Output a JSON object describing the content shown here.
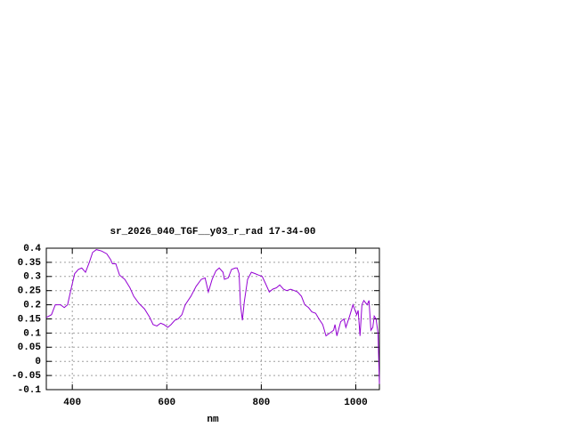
{
  "chart_data": {
    "type": "line",
    "title": "sr_2026_040_TGF__y03_r_rad 17-34-00",
    "x_label": "nm",
    "xlim": [
      345,
      1050
    ],
    "xticks": [
      400,
      600,
      800,
      1000
    ],
    "ylim": [
      -0.1,
      0.4
    ],
    "yticks": [
      -0.1,
      -0.05,
      0,
      0.05,
      0.1,
      0.15,
      0.2,
      0.25,
      0.3,
      0.35,
      0.4
    ],
    "grid": true,
    "x": [
      345,
      356,
      364,
      375,
      383,
      390,
      398,
      405,
      413,
      420,
      428,
      436,
      443,
      451,
      462,
      473,
      481,
      485,
      492,
      500,
      511,
      522,
      530,
      541,
      553,
      564,
      571,
      579,
      587,
      594,
      602,
      609,
      617,
      624,
      632,
      639,
      651,
      662,
      673,
      681,
      688,
      696,
      704,
      711,
      719,
      722,
      730,
      737,
      745,
      749,
      753,
      756,
      760,
      764,
      771,
      779,
      787,
      794,
      802,
      809,
      817,
      824,
      832,
      839,
      847,
      854,
      862,
      870,
      877,
      885,
      892,
      900,
      907,
      915,
      922,
      930,
      937,
      945,
      953,
      956,
      960,
      968,
      975,
      979,
      987,
      994,
      1002,
      1005,
      1009,
      1013,
      1017,
      1024,
      1028,
      1032,
      1036,
      1039,
      1043,
      1047,
      1050
    ],
    "series": [
      {
        "color": "#9400d3",
        "values": [
          0.155,
          0.165,
          0.2,
          0.2,
          0.19,
          0.2,
          0.26,
          0.31,
          0.325,
          0.33,
          0.315,
          0.35,
          0.385,
          0.395,
          0.39,
          0.38,
          0.36,
          0.345,
          0.345,
          0.305,
          0.29,
          0.26,
          0.23,
          0.205,
          0.185,
          0.155,
          0.13,
          0.125,
          0.135,
          0.13,
          0.12,
          0.13,
          0.145,
          0.15,
          0.165,
          0.2,
          0.23,
          0.265,
          0.29,
          0.295,
          0.245,
          0.29,
          0.32,
          0.33,
          0.315,
          0.29,
          0.295,
          0.325,
          0.33,
          0.33,
          0.31,
          0.2,
          0.145,
          0.21,
          0.29,
          0.315,
          0.31,
          0.305,
          0.3,
          0.275,
          0.245,
          0.255,
          0.26,
          0.27,
          0.255,
          0.25,
          0.255,
          0.25,
          0.245,
          0.23,
          0.2,
          0.19,
          0.175,
          0.17,
          0.15,
          0.13,
          0.09,
          0.1,
          0.11,
          0.13,
          0.09,
          0.14,
          0.15,
          0.12,
          0.16,
          0.2,
          0.165,
          0.18,
          0.09,
          0.2,
          0.215,
          0.2,
          0.215,
          0.11,
          0.12,
          0.16,
          0.15,
          0.1,
          -0.08
        ]
      }
    ]
  }
}
